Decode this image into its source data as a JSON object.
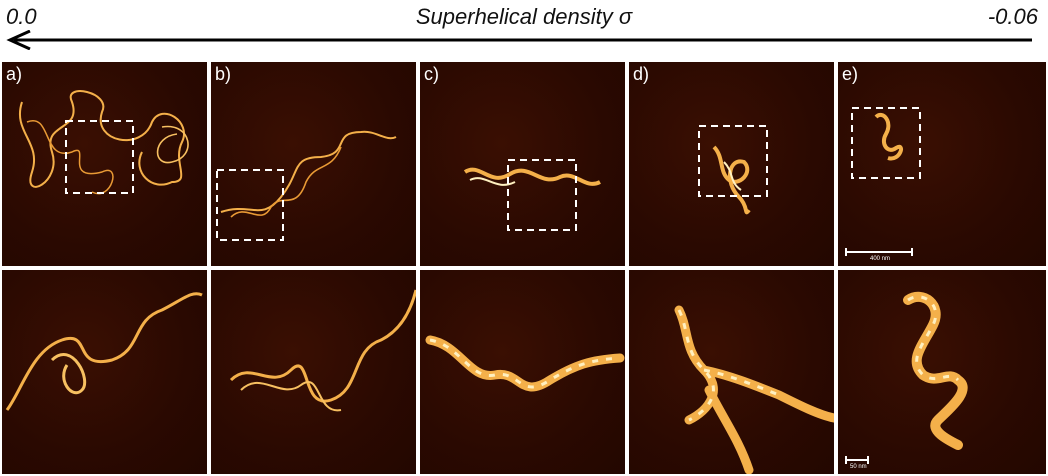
{
  "header": {
    "left_value": "0.0",
    "right_value": "-0.06",
    "axis_title": "Superhelical density σ"
  },
  "panels": [
    {
      "label": "a)"
    },
    {
      "label": "b)"
    },
    {
      "label": "c)"
    },
    {
      "label": "d)"
    },
    {
      "label": "e)"
    }
  ],
  "scale_bars": {
    "top": "400 nm",
    "bottom": "50 nm"
  },
  "colors": {
    "background": "#2a0901",
    "dna_strand": "#f4b04a",
    "dna_highlight": "#fff0c0",
    "box": "#ffffff"
  }
}
